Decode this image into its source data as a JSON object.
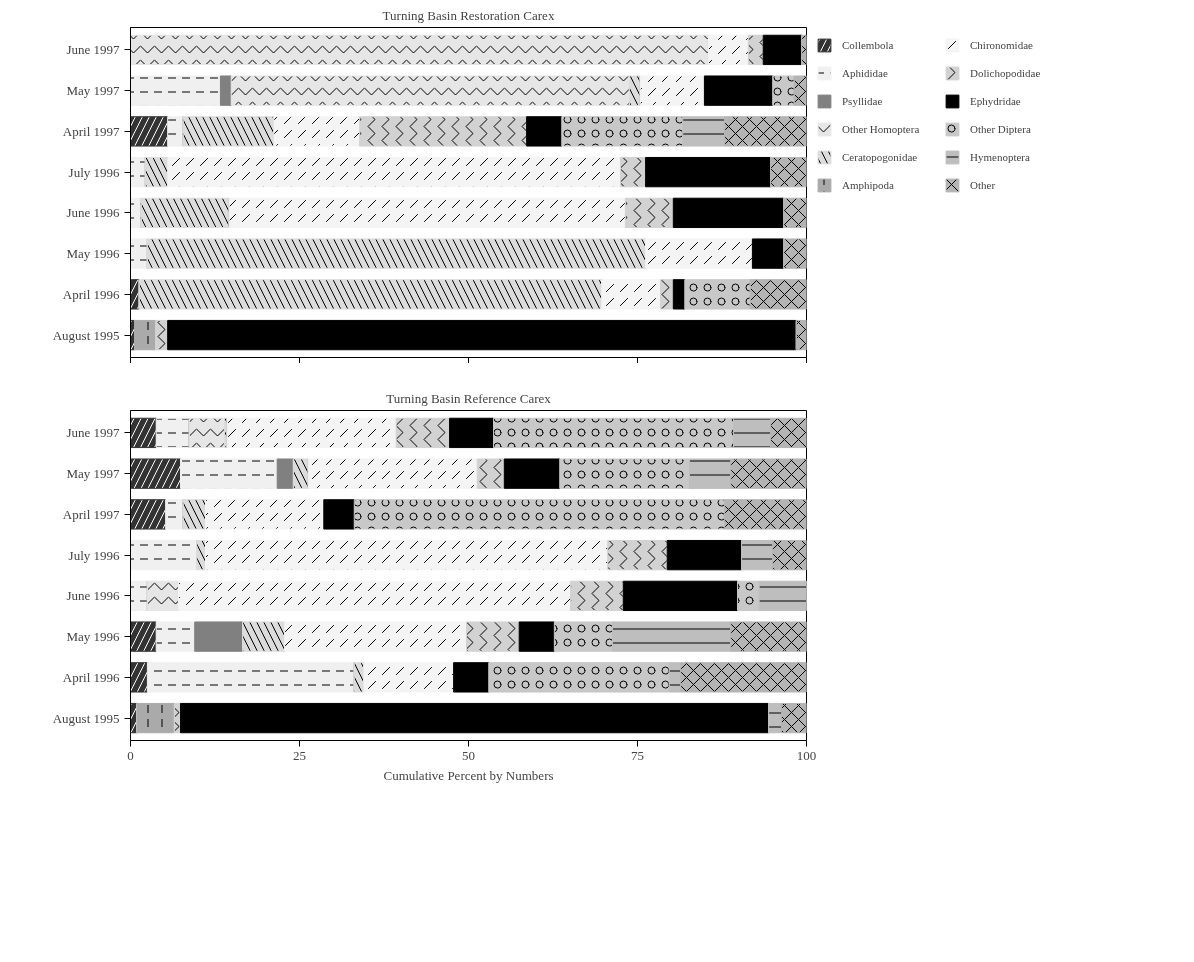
{
  "chart_data": [
    {
      "type": "bar",
      "title": "Turning Basin Restoration Carex",
      "orientation": "horizontal",
      "stacked": true,
      "legend": "right",
      "tick_labels": "y",
      "categories": [
        "June 1997",
        "May 1997",
        "April 1997",
        "July 1996",
        "June 1996",
        "May 1996",
        "April 1996",
        "August 1995"
      ],
      "xlim": [
        0,
        100
      ],
      "xticks": [
        0,
        25,
        50,
        75,
        100
      ],
      "series": [
        {
          "name": "Collembola",
          "color": "#333333",
          "values": [
            0,
            0,
            5.5,
            0,
            0,
            0,
            1.3,
            0.6
          ]
        },
        {
          "name": "Aphididae",
          "color": "#f0f0f0",
          "values": [
            0,
            13.3,
            2.3,
            2.2,
            1.6,
            2.5,
            0,
            0
          ]
        },
        {
          "name": "Psyllidae",
          "color": "#808080",
          "values": [
            0,
            1.6,
            0,
            0,
            0,
            0,
            0,
            0
          ]
        },
        {
          "name": "Other Homoptera",
          "color": "#e6e6e6",
          "values": [
            85.5,
            58.9,
            0,
            0,
            0,
            0,
            0,
            0
          ]
        },
        {
          "name": "Ceratopogonidae",
          "color": "#dcdcdc",
          "values": [
            0,
            1.6,
            13.4,
            3.3,
            13,
            73.7,
            68.4,
            0
          ]
        },
        {
          "name": "Amphipoda",
          "color": "#aaaaaa",
          "values": [
            0,
            0,
            0,
            0,
            0,
            0,
            0,
            3.2
          ]
        },
        {
          "name": "Chironomidae",
          "color": "#f4f4f4",
          "values": [
            5.9,
            9.5,
            12.7,
            67,
            58.6,
            15.8,
            8.7,
            0
          ]
        },
        {
          "name": "Dolichopodidae",
          "color": "#d2d2d2",
          "values": [
            2.2,
            0,
            24.7,
            3.7,
            7.1,
            0,
            1.9,
            1.7
          ]
        },
        {
          "name": "Ephydridae",
          "color": "#000000",
          "values": [
            5.7,
            10.1,
            5.2,
            18.5,
            16.3,
            4.6,
            1.7,
            93
          ]
        },
        {
          "name": "Other Diptera",
          "color": "#c8c8c8",
          "values": [
            0,
            3.2,
            17.9,
            0,
            0,
            0,
            9.7,
            0
          ]
        },
        {
          "name": "Hymenoptera",
          "color": "#bebebe",
          "values": [
            0,
            0,
            6.2,
            0,
            0,
            0,
            0,
            0
          ]
        },
        {
          "name": "Other",
          "color": "#b4b4b4",
          "values": [
            0.7,
            1.8,
            12.1,
            5.3,
            3.4,
            3.4,
            8.3,
            1.5
          ]
        }
      ]
    },
    {
      "type": "bar",
      "title": "Turning Basin Reference Carex",
      "orientation": "horizontal",
      "stacked": true,
      "xlabel": "Cumulative Percent by Numbers",
      "categories": [
        "June 1997",
        "May 1997",
        "April 1997",
        "July 1996",
        "June 1996",
        "May 1996",
        "April 1996",
        "August 1995"
      ],
      "xlim": [
        0,
        100
      ],
      "xticks": [
        0,
        25,
        50,
        75,
        100
      ],
      "series": [
        {
          "color": "#333333",
          "values": [
            3.8,
            7.4,
            5.2,
            0,
            0,
            3.8,
            2.5,
            1
          ]
        },
        {
          "color": "#f0f0f0",
          "values": [
            4.9,
            14.3,
            2.6,
            9.8,
            2.5,
            5.7,
            30.6,
            0
          ]
        },
        {
          "color": "#808080",
          "values": [
            0,
            2.4,
            0,
            0,
            0,
            7.1,
            0,
            0
          ]
        },
        {
          "color": "#e6e6e6",
          "values": [
            5.2,
            0,
            0,
            0,
            4.6,
            0,
            0,
            0
          ]
        },
        {
          "color": "#dcdcdc",
          "values": [
            0.4,
            2.2,
            3.3,
            1.3,
            0,
            6.2,
            1.4,
            0
          ]
        },
        {
          "color": "#aaaaaa",
          "values": [
            0,
            0,
            0,
            0,
            0,
            0,
            0,
            5.5
          ]
        },
        {
          "color": "#f4f4f4",
          "values": [
            25,
            25,
            17.5,
            59.5,
            58,
            26.9,
            13.3,
            0
          ]
        },
        {
          "color": "#d2d2d2",
          "values": [
            7.9,
            4,
            0,
            8.8,
            7.8,
            7.8,
            0,
            0.9
          ]
        },
        {
          "color": "#000000",
          "values": [
            6.5,
            8.2,
            4.5,
            11,
            16.9,
            5.2,
            5.2,
            87
          ]
        },
        {
          "color": "#c8c8c8",
          "values": [
            35.5,
            19.2,
            54.8,
            0,
            3.2,
            8.6,
            26.7,
            0
          ]
        },
        {
          "color": "#bebebe",
          "values": [
            5.5,
            6.1,
            0,
            4.6,
            7,
            17.5,
            1.7,
            1.9
          ]
        },
        {
          "color": "#b4b4b4",
          "values": [
            5.3,
            11.2,
            12.1,
            5,
            0,
            11.2,
            18.6,
            3.7
          ]
        }
      ]
    }
  ]
}
